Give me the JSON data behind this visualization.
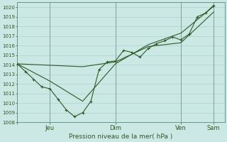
{
  "title": "Pression niveau de la mer( hPa )",
  "background_color": "#cce8e4",
  "grid_color": "#aad4cc",
  "line_color": "#2d5a27",
  "ylim": [
    1008,
    1020.5
  ],
  "yticks": [
    1008,
    1009,
    1010,
    1011,
    1012,
    1013,
    1014,
    1015,
    1016,
    1017,
    1018,
    1019,
    1020
  ],
  "xtick_positions": [
    0,
    24,
    72,
    120,
    144
  ],
  "xtick_labels": [
    "",
    "Jeu",
    "Dim",
    "Ven",
    "Sam"
  ],
  "xlim": [
    0,
    152
  ],
  "series1_x": [
    0,
    6,
    12,
    18,
    24,
    30,
    36,
    42,
    48,
    54,
    60,
    66,
    72,
    78,
    84,
    90,
    96,
    102,
    108,
    114,
    120,
    126,
    132,
    138,
    144
  ],
  "series1_y": [
    1014.1,
    1013.3,
    1012.5,
    1011.7,
    1011.5,
    1010.4,
    1009.3,
    1008.6,
    1009.0,
    1010.2,
    1013.5,
    1014.3,
    1014.4,
    1015.5,
    1015.3,
    1014.8,
    1015.7,
    1016.2,
    1016.5,
    1016.9,
    1016.6,
    1017.2,
    1019.0,
    1019.4,
    1020.2
  ],
  "series2_x": [
    0,
    48,
    72,
    96,
    120,
    144
  ],
  "series2_y": [
    1014.1,
    1013.8,
    1014.3,
    1015.9,
    1016.3,
    1019.5
  ],
  "series3_x": [
    0,
    24,
    48,
    72,
    96,
    120,
    144
  ],
  "series3_y": [
    1014.1,
    1012.3,
    1010.2,
    1014.1,
    1016.1,
    1017.3,
    1020.1
  ]
}
